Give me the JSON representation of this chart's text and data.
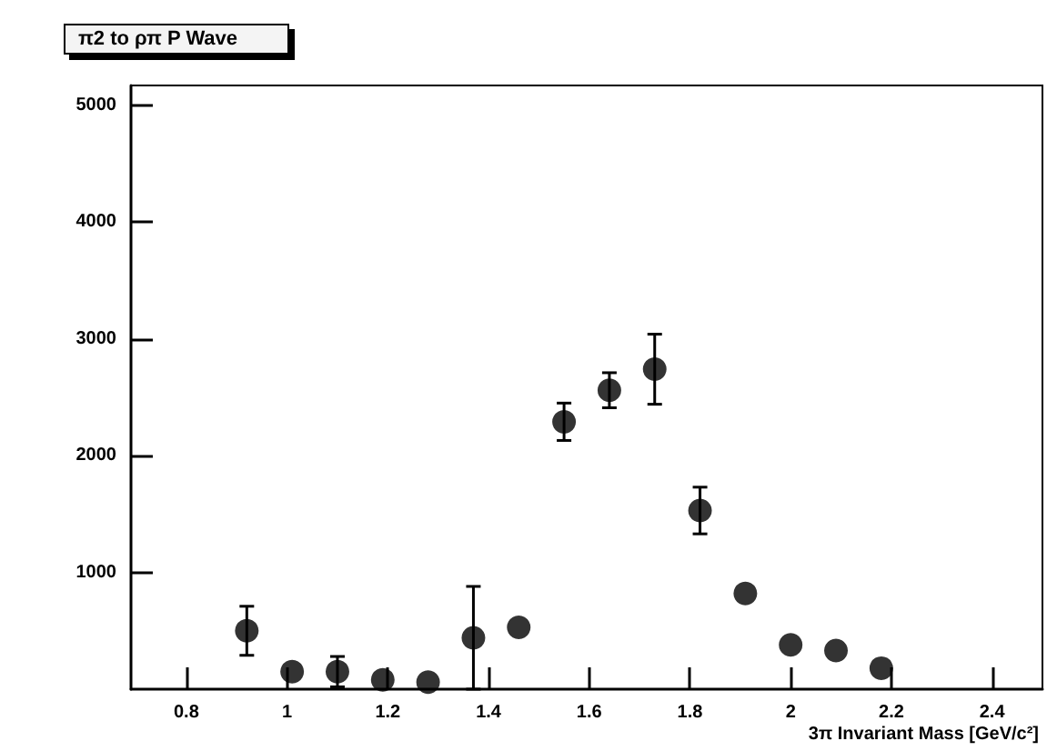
{
  "chart_data": {
    "type": "scatter",
    "title": "π2 to ρπ P Wave",
    "xlabel": "3π Invariant Mass [GeV/c²]",
    "x": [
      0.92,
      1.01,
      1.1,
      1.19,
      1.28,
      1.37,
      1.46,
      1.55,
      1.64,
      1.73,
      1.82,
      1.91,
      2.0,
      2.09,
      2.18
    ],
    "series": [
      {
        "color": "#000000",
        "values": [
          500,
          150,
          150,
          80,
          60,
          440,
          530,
          2290,
          2560,
          2740,
          1530,
          820,
          380,
          330,
          180
        ],
        "errors": [
          210,
          null,
          130,
          null,
          null,
          440,
          null,
          160,
          150,
          300,
          200,
          null,
          null,
          null,
          null
        ]
      }
    ],
    "xlim": [
      0.69,
      2.5
    ],
    "xticks": [
      0.8,
      1,
      1.2,
      1.4,
      1.6,
      1.8,
      2,
      2.2,
      2.4
    ],
    "ylim": [
      0,
      5170
    ],
    "yticks": [
      1000,
      2000,
      3000,
      4000,
      5000
    ],
    "grid": false,
    "marker": "circle"
  }
}
